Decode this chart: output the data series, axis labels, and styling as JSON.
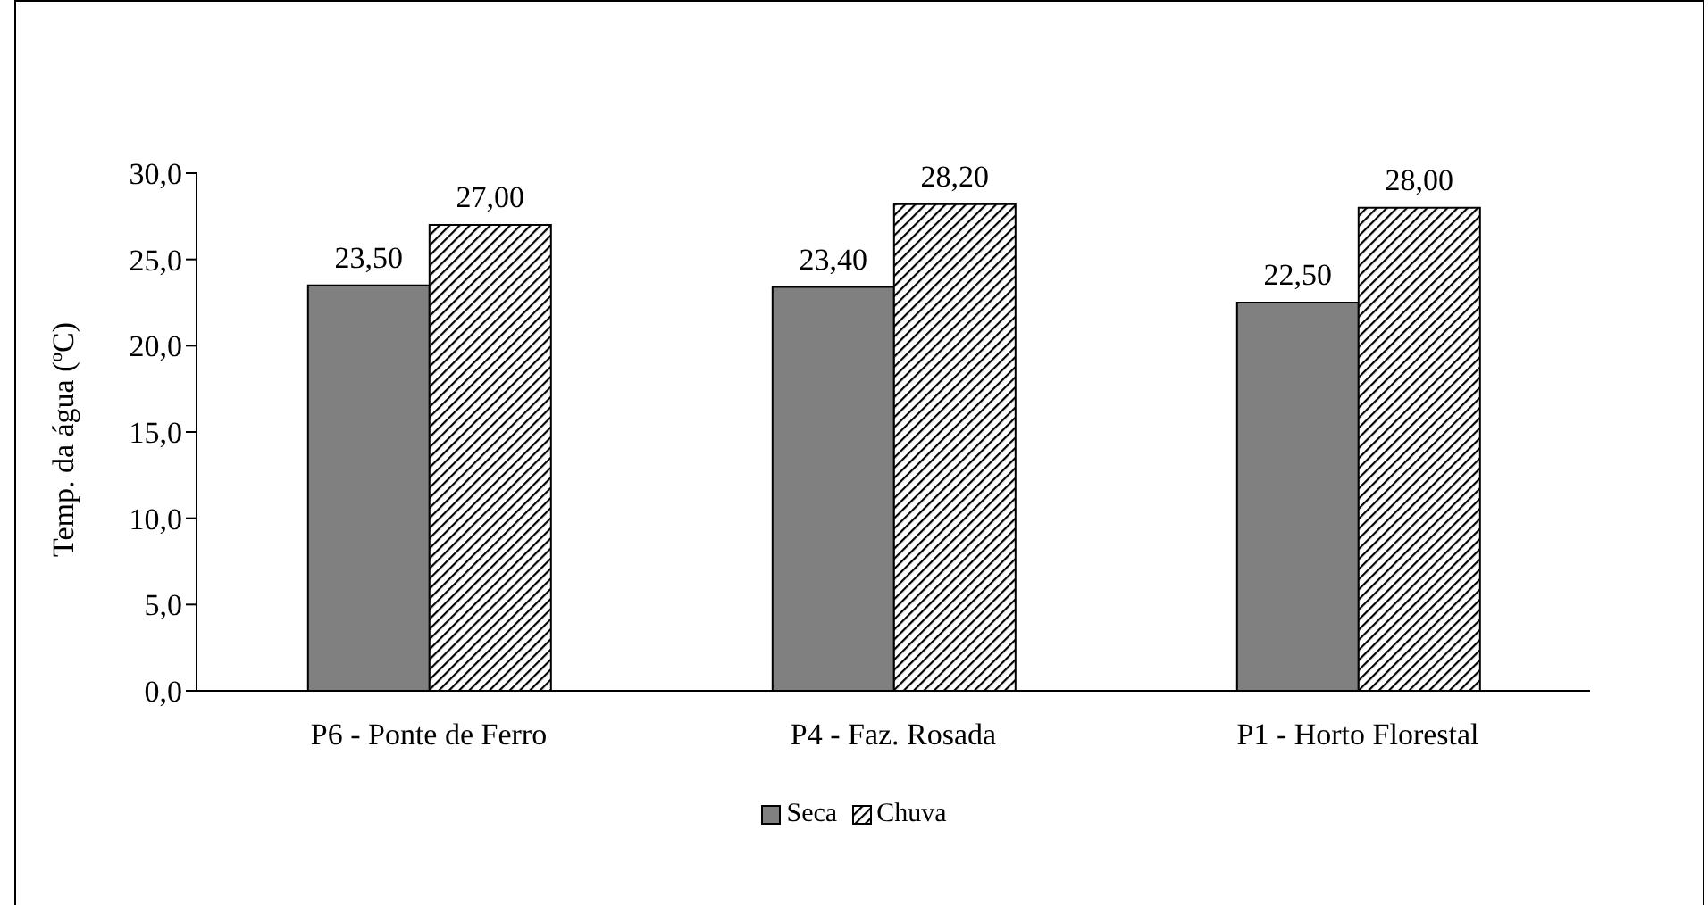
{
  "chart_data": {
    "type": "bar",
    "categories": [
      "P6 - Ponte de Ferro",
      "P4 - Faz. Rosada",
      "P1 - Horto Florestal"
    ],
    "ylabel": "Temp. da água (ºC)",
    "series": [
      {
        "name": "Seca",
        "color": "#808080",
        "values": [
          23.5,
          23.4,
          22.5
        ],
        "value_labels": [
          "23,50",
          "23,40",
          "22,50"
        ]
      },
      {
        "name": "Chuva",
        "color": "#000000",
        "values": [
          27.0,
          28.2,
          28.0
        ],
        "value_labels": [
          "27,00",
          "28,20",
          "28,00"
        ]
      }
    ],
    "ylim": [
      0,
      30
    ],
    "yticks": [
      {
        "value": 0,
        "label": "0,0"
      },
      {
        "value": 5,
        "label": "5,0"
      },
      {
        "value": 10,
        "label": "10,0"
      },
      {
        "value": 15,
        "label": "15,0"
      },
      {
        "value": 20,
        "label": "20,0"
      },
      {
        "value": 25,
        "label": "25,0"
      },
      {
        "value": 30,
        "label": "30,0"
      }
    ],
    "grid": false,
    "legend": "bottom"
  }
}
